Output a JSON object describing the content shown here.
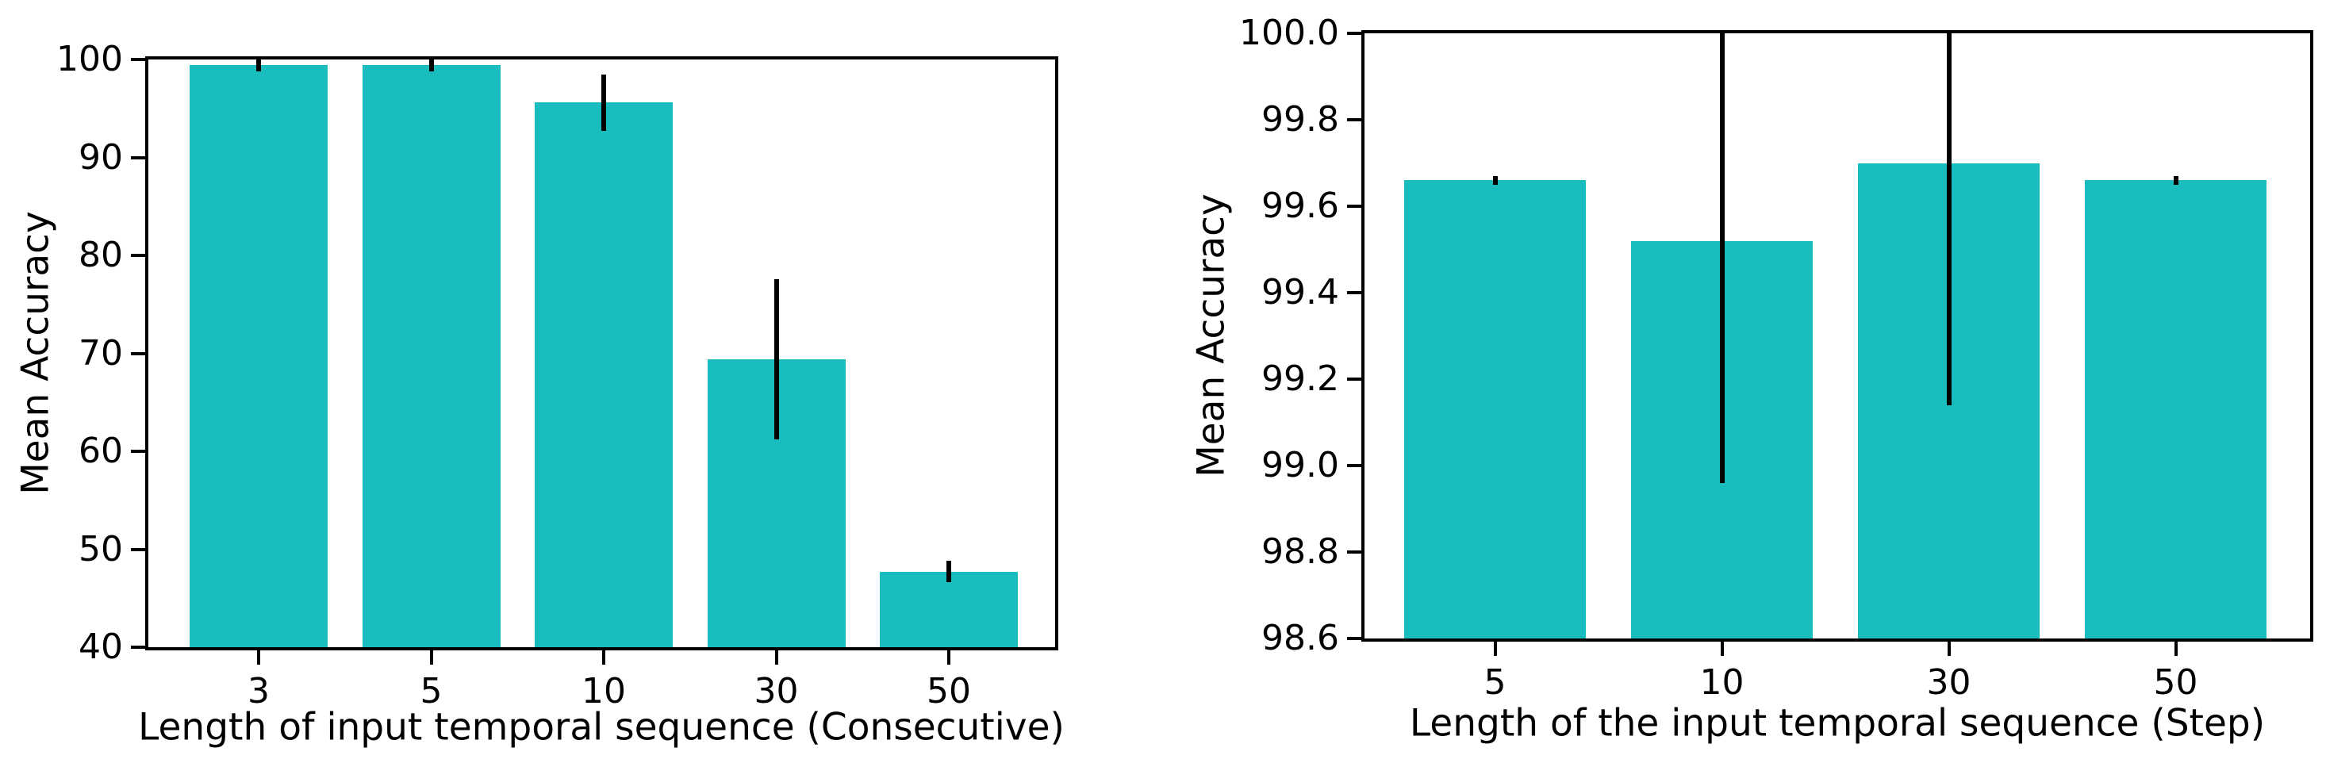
{
  "figure": {
    "background": "#ffffff"
  },
  "chart_data": [
    {
      "type": "bar",
      "title": "",
      "categories": [
        "3",
        "5",
        "10",
        "30",
        "50"
      ],
      "values": [
        99.4,
        99.4,
        95.6,
        69.4,
        47.7
      ],
      "errors": [
        0.6,
        0.6,
        2.9,
        8.2,
        1.1
      ],
      "xlabel": "Length of input temporal sequence (Consecutive)",
      "ylabel": "Mean Accuracy",
      "ylim": [
        40,
        100
      ],
      "yticks": [
        "40",
        "50",
        "60",
        "70",
        "80",
        "90",
        "100"
      ],
      "grid": false,
      "legend": null,
      "bar_color": "#1abdbe",
      "error_color": "#000000"
    },
    {
      "type": "bar",
      "title": "",
      "categories": [
        "5",
        "10",
        "30",
        "50"
      ],
      "values": [
        99.66,
        99.52,
        99.7,
        99.66
      ],
      "errors": [
        0.01,
        0.56,
        0.56,
        0.01
      ],
      "xlabel": "Length of the input temporal sequence (Step)",
      "ylabel": "Mean Accuracy",
      "ylim": [
        98.6,
        100.0
      ],
      "yticks": [
        "98.6",
        "98.8",
        "99.0",
        "99.2",
        "99.4",
        "99.6",
        "99.8",
        "100.0"
      ],
      "grid": false,
      "legend": null,
      "bar_color": "#1abdbe",
      "error_color": "#000000"
    }
  ]
}
